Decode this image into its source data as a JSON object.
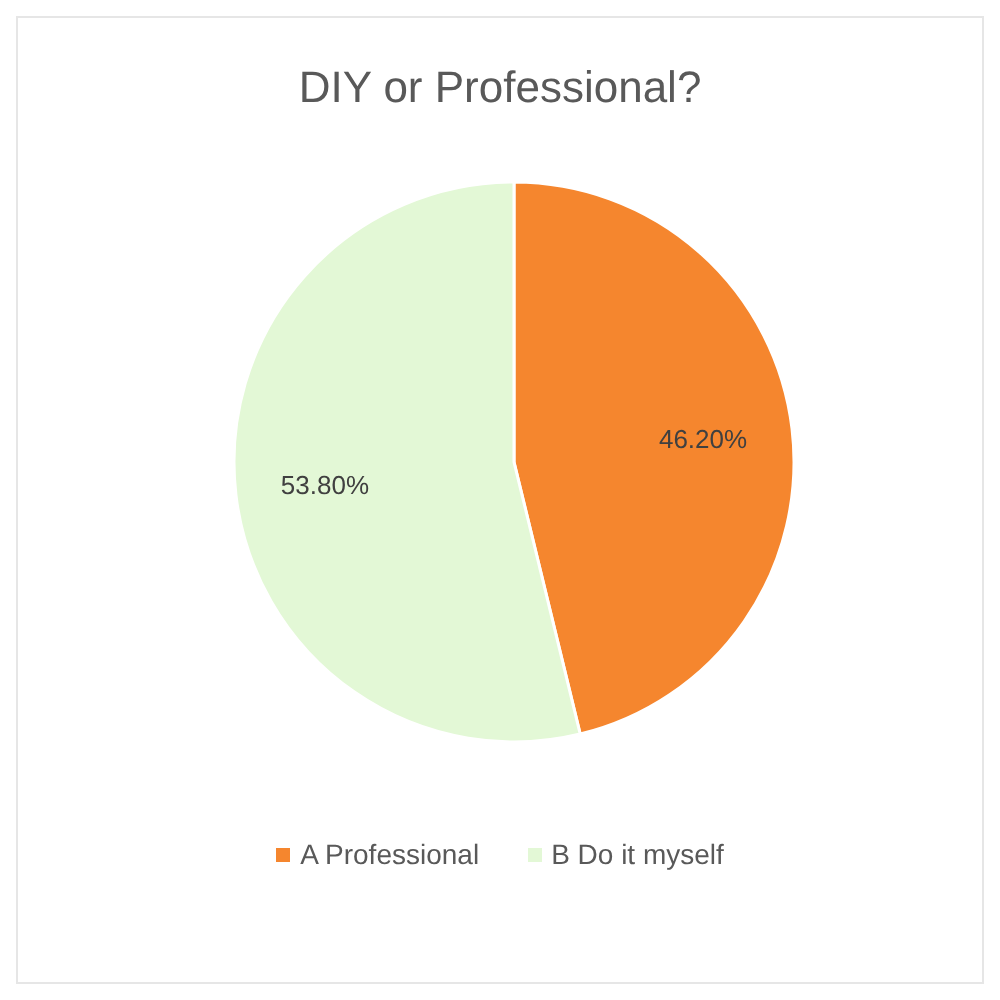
{
  "chart_data": {
    "type": "pie",
    "title": "DIY or Professional?",
    "categories": [
      "A Professional",
      "B Do it myself"
    ],
    "values": [
      46.2,
      53.8
    ],
    "colors": [
      "#f5862e",
      "#e3f8d6"
    ],
    "value_labels": [
      "46.20%",
      "53.80%"
    ],
    "legend": "bottom"
  }
}
